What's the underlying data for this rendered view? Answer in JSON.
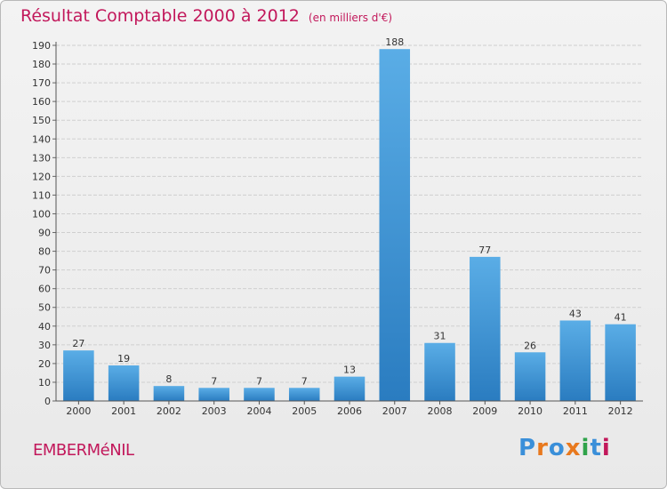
{
  "title": "Résultat Comptable 2000 à 2012",
  "subtitle": "(en milliers d'€)",
  "commune": "EMBERMéNIL",
  "logo": [
    "P",
    "r",
    "o",
    "x",
    "i",
    "t",
    "i"
  ],
  "colors": {
    "title": "#c2185b",
    "bar_top": "#5aade6",
    "bar_bottom": "#2a7cc0",
    "logo": [
      "#3a8fd9",
      "#e8791e",
      "#3a8fd9",
      "#e8791e",
      "#2fa34a",
      "#3a8fd9",
      "#c2185b"
    ]
  },
  "chart_data": {
    "type": "bar",
    "title": "Résultat Comptable 2000 à 2012",
    "unit": "(en milliers d'€)",
    "categories": [
      "2000",
      "2001",
      "2002",
      "2003",
      "2004",
      "2005",
      "2006",
      "2007",
      "2008",
      "2009",
      "2010",
      "2011",
      "2012"
    ],
    "values": [
      27,
      19,
      8,
      7,
      7,
      7,
      13,
      188,
      31,
      77,
      26,
      43,
      41
    ],
    "ylim": [
      0,
      190
    ],
    "yticks": [
      0,
      10,
      20,
      30,
      40,
      50,
      60,
      70,
      80,
      90,
      100,
      110,
      120,
      130,
      140,
      150,
      160,
      170,
      180,
      190
    ],
    "xlabel": "",
    "ylabel": ""
  }
}
